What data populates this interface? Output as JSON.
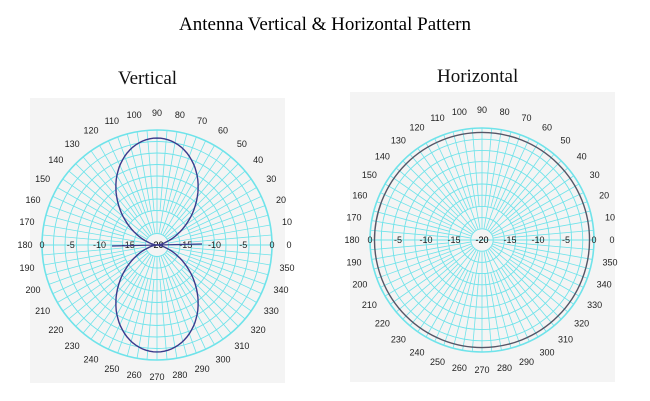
{
  "title": "Antenna Vertical & Horizontal Pattern",
  "colors": {
    "grid": "#6fe3ea",
    "grid_panel_bg": "#f4f4f4",
    "vertical_trace": "#3a3a8c",
    "horizontal_trace": "#555566"
  },
  "chart_data": [
    {
      "type": "polar",
      "title": "Vertical",
      "angular_unit": "degrees",
      "angle_ticks": [
        0,
        10,
        20,
        30,
        40,
        50,
        60,
        70,
        80,
        90,
        100,
        110,
        120,
        130,
        140,
        150,
        160,
        170,
        180,
        190,
        200,
        210,
        220,
        230,
        240,
        250,
        260,
        270,
        280,
        290,
        300,
        310,
        320,
        330,
        340,
        350
      ],
      "radial_tick_labels": [
        "0",
        "-5",
        "-10",
        "-15",
        "-20"
      ],
      "radial_range_db": [
        -20,
        0
      ],
      "series": [
        {
          "shape": "figure-eight",
          "theta_deg": [
            0,
            10,
            20,
            30,
            40,
            50,
            60,
            70,
            80,
            90,
            100,
            110,
            120,
            130,
            140,
            150,
            160,
            170,
            180,
            190,
            200,
            210,
            220,
            230,
            240,
            250,
            260,
            270,
            280,
            290,
            300,
            310,
            320,
            330,
            340,
            350
          ],
          "gain_db": [
            -20,
            -12.5,
            -7.6,
            -5.1,
            -3.2,
            -1.8,
            -0.9,
            -0.3,
            0,
            0,
            0,
            -0.3,
            -0.9,
            -1.8,
            -3.2,
            -5.1,
            -7.6,
            -12.5,
            -20,
            -12.5,
            -7.6,
            -5.1,
            -3.2,
            -1.8,
            -0.9,
            -0.3,
            0,
            0,
            0,
            -0.3,
            -0.9,
            -1.8,
            -3.2,
            -5.1,
            -7.6,
            -12.5
          ]
        }
      ]
    },
    {
      "type": "polar",
      "title": "Horizontal",
      "angular_unit": "degrees",
      "angle_ticks": [
        0,
        10,
        20,
        30,
        40,
        50,
        60,
        70,
        80,
        90,
        100,
        110,
        120,
        130,
        140,
        150,
        160,
        170,
        180,
        190,
        200,
        210,
        220,
        230,
        240,
        250,
        260,
        270,
        280,
        290,
        300,
        310,
        320,
        330,
        340,
        350
      ],
      "radial_tick_labels": [
        "0",
        "-5",
        "-10",
        "-15",
        "-20"
      ],
      "radial_range_db": [
        -20,
        0
      ],
      "series": [
        {
          "shape": "omnidirectional",
          "theta_deg": [
            0,
            30,
            60,
            90,
            120,
            150,
            180,
            210,
            240,
            270,
            300,
            330
          ],
          "gain_db": [
            -0.8,
            -0.8,
            -0.8,
            -0.8,
            -0.8,
            -0.8,
            -0.8,
            -0.8,
            -0.8,
            -0.8,
            -0.8,
            -0.8
          ]
        }
      ]
    }
  ]
}
